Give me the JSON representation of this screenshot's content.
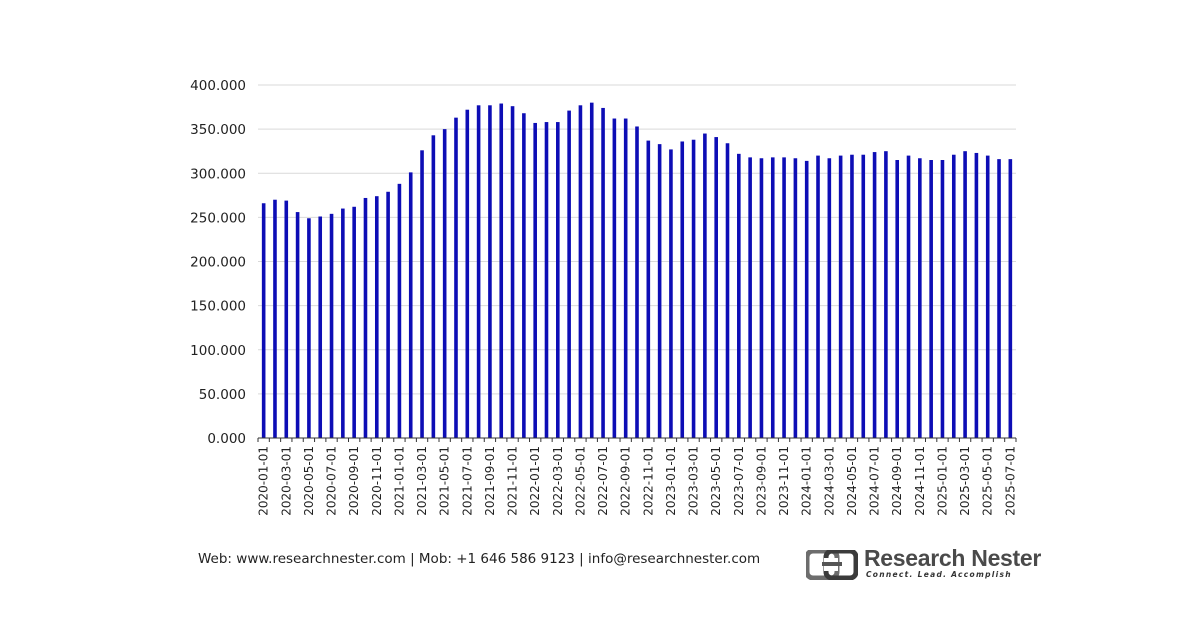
{
  "chart_data": {
    "type": "bar",
    "title": "",
    "xlabel": "",
    "ylabel": "",
    "ylim": [
      0,
      400000
    ],
    "yticks": [
      "0.000",
      "50.000",
      "100.000",
      "150.000",
      "200.000",
      "250.000",
      "300.000",
      "350.000",
      "400.000"
    ],
    "ytick_values": [
      0,
      50000,
      100000,
      150000,
      200000,
      250000,
      300000,
      350000,
      400000
    ],
    "grid": true,
    "bar_color": "#0d0db5",
    "categories": [
      "2020-01-01",
      "2020-02-01",
      "2020-03-01",
      "2020-04-01",
      "2020-05-01",
      "2020-06-01",
      "2020-07-01",
      "2020-08-01",
      "2020-09-01",
      "2020-10-01",
      "2020-11-01",
      "2020-12-01",
      "2021-01-01",
      "2021-02-01",
      "2021-03-01",
      "2021-04-01",
      "2021-05-01",
      "2021-06-01",
      "2021-07-01",
      "2021-08-01",
      "2021-09-01",
      "2021-10-01",
      "2021-11-01",
      "2021-12-01",
      "2022-01-01",
      "2022-02-01",
      "2022-03-01",
      "2022-04-01",
      "2022-05-01",
      "2022-06-01",
      "2022-07-01",
      "2022-08-01",
      "2022-09-01",
      "2022-10-01",
      "2022-11-01",
      "2022-12-01",
      "2023-01-01",
      "2023-02-01",
      "2023-03-01",
      "2023-04-01",
      "2023-05-01",
      "2023-06-01",
      "2023-07-01",
      "2023-08-01",
      "2023-09-01",
      "2023-10-01",
      "2023-11-01",
      "2023-12-01",
      "2024-01-01",
      "2024-02-01",
      "2024-03-01",
      "2024-04-01",
      "2024-05-01",
      "2024-06-01",
      "2024-07-01",
      "2024-08-01",
      "2024-09-01",
      "2024-10-01",
      "2024-11-01",
      "2024-12-01",
      "2025-01-01",
      "2025-02-01",
      "2025-03-01",
      "2025-04-01",
      "2025-05-01",
      "2025-06-01",
      "2025-07-01"
    ],
    "tick_labels": [
      "2020-01-01",
      "2020-03-01",
      "2020-05-01",
      "2020-07-01",
      "2020-09-01",
      "2020-11-01",
      "2021-01-01",
      "2021-03-01",
      "2021-05-01",
      "2021-07-01",
      "2021-09-01",
      "2021-11-01",
      "2022-01-01",
      "2022-03-01",
      "2022-05-01",
      "2022-07-01",
      "2022-09-01",
      "2022-11-01",
      "2023-01-01",
      "2023-03-01",
      "2023-05-01",
      "2023-07-01",
      "2023-09-01",
      "2023-11-01",
      "2024-01-01",
      "2024-03-01",
      "2024-05-01",
      "2024-07-01",
      "2024-09-01",
      "2024-11-01",
      "2025-01-01",
      "2025-03-01",
      "2025-05-01",
      "2025-07-01"
    ],
    "values": [
      266000,
      270000,
      269000,
      256000,
      249000,
      251000,
      254000,
      260000,
      262000,
      272000,
      274000,
      279000,
      288000,
      301000,
      326000,
      343000,
      350000,
      363000,
      372000,
      377000,
      377000,
      379000,
      376000,
      368000,
      357000,
      358000,
      358000,
      371000,
      377000,
      380000,
      374000,
      362000,
      362000,
      353000,
      337000,
      333000,
      327000,
      336000,
      338000,
      345000,
      341000,
      334000,
      322000,
      318000,
      317000,
      318000,
      318000,
      317000,
      314000,
      320000,
      317000,
      320000,
      321000,
      321000,
      324000,
      325000,
      315000,
      320000,
      317000,
      315000,
      315000,
      321000,
      325000,
      323000,
      320000,
      316000,
      316000
    ]
  },
  "footer": {
    "contact": "Web: www.researchnester.com | Mob: +1 646 586 9123 | info@researchnester.com"
  },
  "brand": {
    "name": "Research Nester",
    "tagline": "Connect. Lead. Accomplish",
    "logo_icon": "research-nester-logo-icon"
  }
}
